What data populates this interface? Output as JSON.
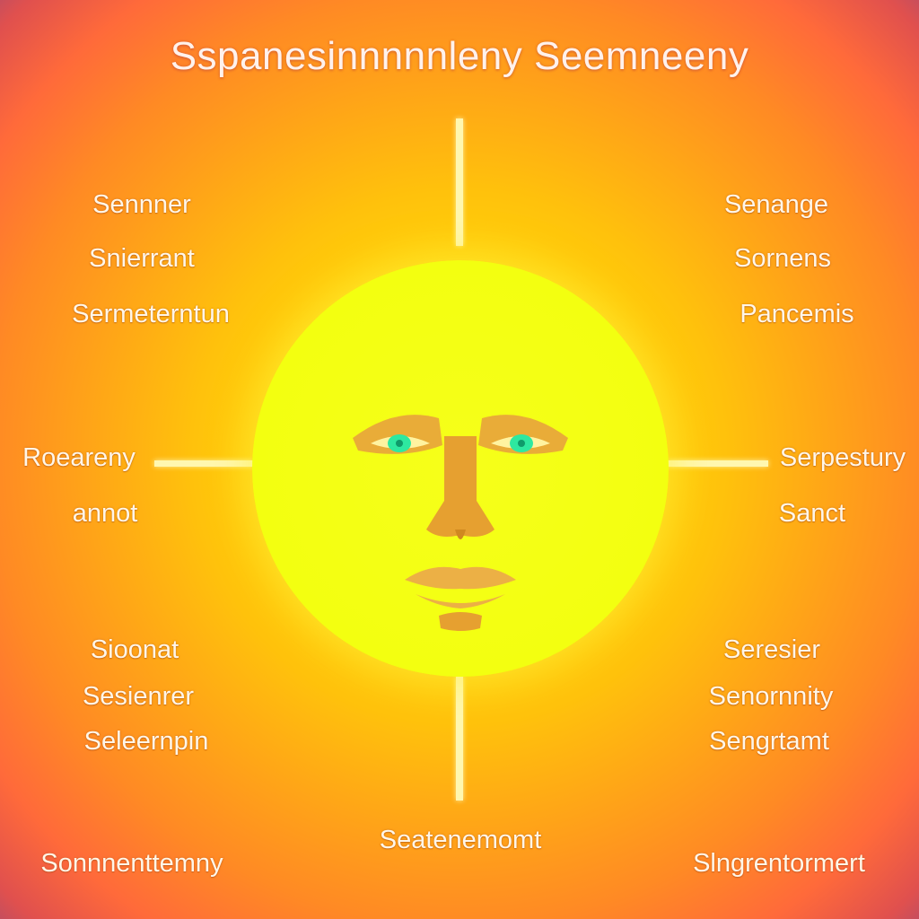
{
  "title": "Sspanesinnnnnleny  Seemneeny",
  "labels": {
    "left_top": [
      "Sennner",
      "Snierrant",
      "Sermeterntun"
    ],
    "left_mid": [
      "Roearenу",
      "annot"
    ],
    "left_bottom": [
      "Sioonat",
      "Sesienrer",
      "Seleernpin"
    ],
    "right_top": [
      "Senange",
      "Sornens",
      "Pancemis"
    ],
    "right_mid": [
      "Serpestury",
      "Sanct"
    ],
    "right_bottom": [
      "Seresier",
      "Senornnity",
      "Sengrtamt"
    ],
    "bottom_center": "Seatenemomt",
    "bottom_left": "Sonnnenttemny",
    "bottom_right": "Slngrentormert"
  },
  "colors": {
    "sun": "#f3ff10",
    "background_center": "#ffd40a",
    "background_edge": "#6a4a90",
    "ray": "#fff7b0",
    "face_shade": "#e8a83a",
    "eyes": "#2ee8a0"
  }
}
